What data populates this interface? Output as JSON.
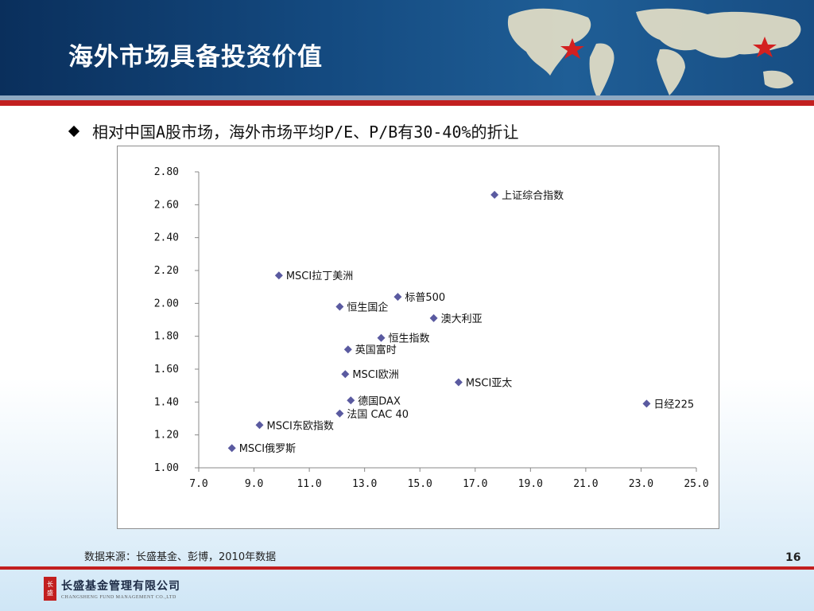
{
  "slide": {
    "title": "海外市场具备投资价值",
    "bullet": "相对中国A股市场，海外市场平均P/E、P/B有30-40%的折让",
    "source": "数据来源：长盛基金、彭博，2010年数据",
    "page_number": "16",
    "company_cn": "长盛基金管理有限公司",
    "company_en": "CHANGSHENG FUND MANAGEMENT CO.,LTD",
    "logo_seal": [
      "长",
      "盛"
    ]
  },
  "colors": {
    "header_bg": "#144a80",
    "accent_red": "#c21f1f",
    "marker": "#5a5aa0"
  },
  "chart_data": {
    "type": "scatter",
    "title": "",
    "xlabel": "",
    "ylabel": "",
    "xlim": [
      7.0,
      25.0
    ],
    "ylim": [
      1.0,
      2.8
    ],
    "x_ticks": [
      "7.0",
      "9.0",
      "11.0",
      "13.0",
      "15.0",
      "17.0",
      "19.0",
      "21.0",
      "23.0",
      "25.0"
    ],
    "y_ticks": [
      "1.00",
      "1.20",
      "1.40",
      "1.60",
      "1.80",
      "2.00",
      "2.20",
      "2.40",
      "2.60",
      "2.80"
    ],
    "x_tick_values": [
      7,
      9,
      11,
      13,
      15,
      17,
      19,
      21,
      23,
      25
    ],
    "y_tick_values": [
      1.0,
      1.2,
      1.4,
      1.6,
      1.8,
      2.0,
      2.2,
      2.4,
      2.6,
      2.8
    ],
    "grid": false,
    "legend": "none",
    "points": [
      {
        "label": "上证综合指数",
        "x": 17.7,
        "y": 2.66
      },
      {
        "label": "MSCI拉丁美洲",
        "x": 9.9,
        "y": 2.17
      },
      {
        "label": "标普500",
        "x": 14.2,
        "y": 2.04
      },
      {
        "label": "恒生国企",
        "x": 12.1,
        "y": 1.98
      },
      {
        "label": "澳大利亚",
        "x": 15.5,
        "y": 1.91
      },
      {
        "label": "恒生指数",
        "x": 13.6,
        "y": 1.79
      },
      {
        "label": "英国富时",
        "x": 12.4,
        "y": 1.72
      },
      {
        "label": "MSCI欧洲",
        "x": 12.3,
        "y": 1.57
      },
      {
        "label": "MSCI亚太",
        "x": 16.4,
        "y": 1.52
      },
      {
        "label": "德国DAX",
        "x": 12.5,
        "y": 1.41
      },
      {
        "label": "日经225",
        "x": 23.2,
        "y": 1.39
      },
      {
        "label": "法国 CAC 40",
        "x": 12.1,
        "y": 1.33
      },
      {
        "label": "MSCI东欧指数",
        "x": 9.2,
        "y": 1.26
      },
      {
        "label": "MSCI俄罗斯",
        "x": 8.2,
        "y": 1.12
      }
    ]
  }
}
